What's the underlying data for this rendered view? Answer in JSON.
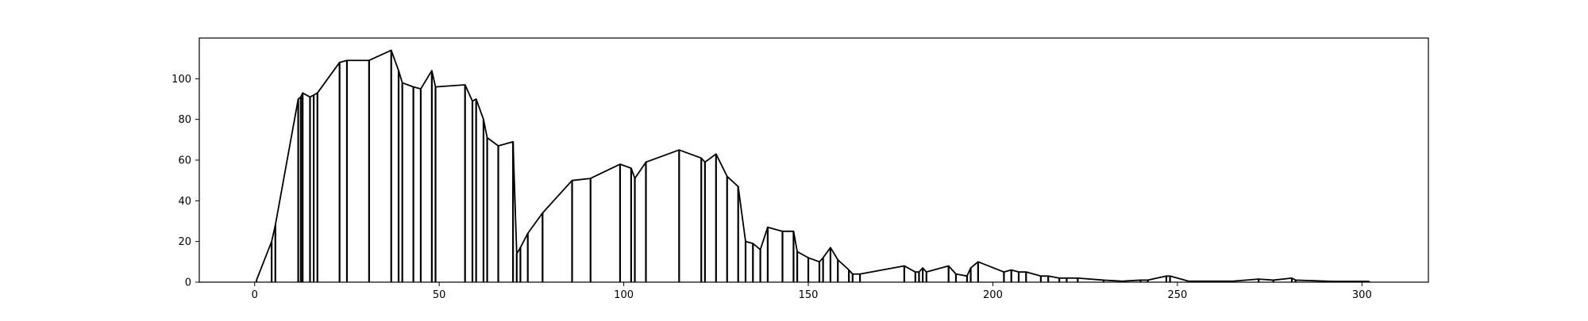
{
  "chart_data": {
    "type": "line",
    "title": "",
    "xlabel": "",
    "ylabel": "",
    "xlim": [
      -15,
      318
    ],
    "ylim": [
      0,
      120
    ],
    "xticks": [
      0,
      50,
      100,
      150,
      200,
      250,
      300
    ],
    "yticks": [
      0,
      20,
      40,
      60,
      80,
      100
    ],
    "grid": false,
    "legend": "none",
    "line_color": "#000000",
    "series": [
      {
        "values": [
          [
            0.5,
            1
          ],
          [
            4.6,
            20
          ],
          [
            5.6,
            28
          ],
          [
            11.8,
            90
          ],
          [
            12.5,
            91
          ],
          [
            13,
            93
          ],
          [
            15,
            91
          ],
          [
            16,
            92
          ],
          [
            17,
            93
          ],
          [
            23,
            108
          ],
          [
            25,
            109
          ],
          [
            31,
            109
          ],
          [
            37,
            114
          ],
          [
            39,
            104
          ],
          [
            40,
            98
          ],
          [
            43,
            96
          ],
          [
            45,
            95
          ],
          [
            48,
            104
          ],
          [
            49,
            96
          ],
          [
            57,
            97
          ],
          [
            59,
            89
          ],
          [
            60,
            90
          ],
          [
            62,
            80
          ],
          [
            63,
            71
          ],
          [
            66,
            67
          ],
          [
            70,
            69
          ],
          [
            71,
            14
          ],
          [
            72,
            17
          ],
          [
            74,
            24
          ],
          [
            78,
            34
          ],
          [
            86,
            50
          ],
          [
            91,
            51
          ],
          [
            99,
            58
          ],
          [
            102,
            56
          ],
          [
            103,
            51
          ],
          [
            106,
            59
          ],
          [
            115,
            65
          ],
          [
            121,
            61
          ],
          [
            122,
            59
          ],
          [
            125,
            63
          ],
          [
            128,
            52
          ],
          [
            131,
            47
          ],
          [
            133,
            20
          ],
          [
            135,
            19
          ],
          [
            137,
            16
          ],
          [
            139,
            27
          ],
          [
            143,
            25
          ],
          [
            146,
            25
          ],
          [
            147,
            15
          ],
          [
            150,
            12
          ],
          [
            153,
            10
          ],
          [
            154,
            12
          ],
          [
            156,
            17
          ],
          [
            158,
            11
          ],
          [
            161,
            6
          ],
          [
            162,
            4
          ],
          [
            164,
            4
          ],
          [
            176,
            8
          ],
          [
            179,
            5
          ],
          [
            180,
            5
          ],
          [
            181,
            7
          ],
          [
            182,
            5
          ],
          [
            188,
            8
          ],
          [
            190,
            4
          ],
          [
            193,
            3
          ],
          [
            194,
            7
          ],
          [
            196,
            10
          ],
          [
            203,
            5
          ],
          [
            205,
            6
          ],
          [
            207,
            5
          ],
          [
            209,
            5
          ],
          [
            213,
            3
          ],
          [
            215,
            3
          ],
          [
            218,
            2
          ],
          [
            220,
            2
          ],
          [
            223,
            2
          ],
          [
            230,
            1
          ],
          [
            235,
            0.5
          ],
          [
            240,
            1
          ],
          [
            242,
            1
          ],
          [
            247,
            3
          ],
          [
            248,
            3
          ],
          [
            253,
            0.5
          ],
          [
            265,
            0.5
          ],
          [
            272,
            1.5
          ],
          [
            276,
            1
          ],
          [
            281,
            2
          ],
          [
            282,
            1
          ],
          [
            292,
            0.4
          ],
          [
            302,
            0.4
          ]
        ]
      }
    ]
  }
}
